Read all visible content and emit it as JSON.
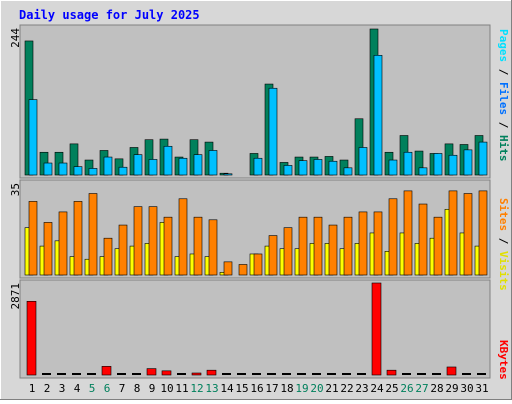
{
  "title": "Daily usage for July 2025",
  "colors": {
    "hits": "#00805c",
    "files": "#00c0ff",
    "pages": "#00e0ff",
    "visits": "#ffff00",
    "sites": "#ff8000",
    "kbytes": "#ff0000",
    "panel_bg": "#c0c0c0",
    "frame_bg": "#d7d7d7",
    "title_text": "#0000ff",
    "weekend_day": "#00805c"
  },
  "days": [
    "1",
    "2",
    "3",
    "4",
    "5",
    "6",
    "7",
    "8",
    "9",
    "10",
    "11",
    "12",
    "13",
    "14",
    "15",
    "16",
    "17",
    "18",
    "19",
    "20",
    "21",
    "22",
    "23",
    "24",
    "25",
    "26",
    "27",
    "28",
    "29",
    "30",
    "31"
  ],
  "weekend_days": [
    "5",
    "6",
    "12",
    "13",
    "19",
    "20",
    "26",
    "27"
  ],
  "chart_data": [
    {
      "type": "bar",
      "panel": "hits-files-pages",
      "y_max_label": "244",
      "ylim": [
        0,
        244
      ],
      "legend": [
        "Pages",
        "Files",
        "Hits"
      ],
      "series": [
        {
          "name": "Hits",
          "values": [
            224,
            38,
            38,
            52,
            25,
            41,
            27,
            46,
            59,
            60,
            30,
            59,
            55,
            3,
            0,
            36,
            152,
            21,
            30,
            30,
            31,
            25,
            94,
            244,
            38,
            66,
            40,
            36,
            52,
            51,
            66
          ]
        },
        {
          "name": "Files",
          "values": [
            126,
            20,
            20,
            14,
            11,
            30,
            13,
            34,
            26,
            48,
            28,
            34,
            41,
            2,
            0,
            28,
            145,
            16,
            24,
            26,
            23,
            12,
            46,
            200,
            25,
            38,
            12,
            36,
            33,
            42,
            55
          ]
        },
        {
          "name": "Pages",
          "values": [
            0,
            0,
            0,
            0,
            0,
            0,
            0,
            0,
            0,
            0,
            0,
            0,
            0,
            0,
            0,
            0,
            0,
            0,
            0,
            0,
            0,
            0,
            0,
            0,
            0,
            0,
            0,
            0,
            0,
            0,
            0
          ]
        }
      ]
    },
    {
      "type": "bar",
      "panel": "visits-sites",
      "y_max_label": "35",
      "ylim": [
        0,
        35
      ],
      "legend": [
        "Sites",
        "Visits"
      ],
      "series": [
        {
          "name": "Visits",
          "values": [
            18,
            11,
            13,
            7,
            6,
            7,
            10,
            11,
            12,
            20,
            7,
            8,
            7,
            1,
            0,
            8,
            11,
            10,
            10,
            12,
            12,
            10,
            12,
            16,
            9,
            16,
            12,
            14,
            25,
            16,
            11
          ]
        },
        {
          "name": "Sites",
          "values": [
            28,
            20,
            24,
            28,
            31,
            14,
            19,
            26,
            26,
            22,
            29,
            22,
            21,
            5,
            4,
            8,
            15,
            18,
            22,
            22,
            19,
            22,
            24,
            24,
            29,
            32,
            27,
            22,
            32,
            31,
            32
          ]
        }
      ]
    },
    {
      "type": "bar",
      "panel": "kbytes",
      "y_max_label": "2871",
      "ylim": [
        0,
        2871
      ],
      "legend": [
        "KBytes"
      ],
      "series": [
        {
          "name": "KBytes",
          "values": [
            2300,
            0,
            0,
            0,
            0,
            270,
            0,
            0,
            200,
            130,
            0,
            50,
            150,
            0,
            0,
            0,
            0,
            0,
            0,
            0,
            0,
            0,
            0,
            2871,
            150,
            0,
            0,
            0,
            250,
            0,
            0
          ]
        }
      ]
    }
  ]
}
